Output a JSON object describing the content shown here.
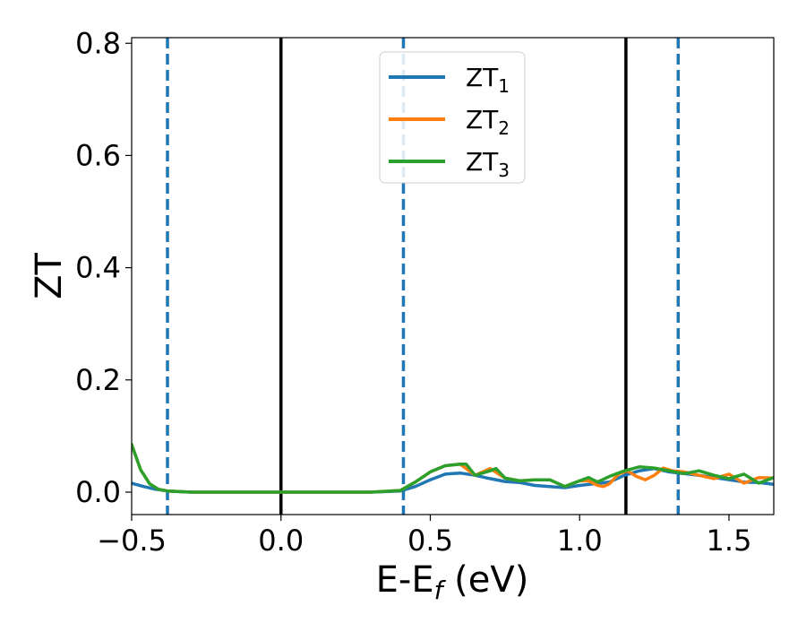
{
  "chart_data": {
    "type": "line",
    "xlabel": "E-E_f (eV)",
    "ylabel": "ZT",
    "xlim": [
      -0.5,
      1.65
    ],
    "ylim": [
      -0.04,
      0.81
    ],
    "x_ticks": [
      -0.5,
      0.0,
      0.5,
      1.0,
      1.5
    ],
    "x_tick_labels": [
      "−0.5",
      "0.0",
      "0.5",
      "1.0",
      "1.5"
    ],
    "y_ticks": [
      0.0,
      0.2,
      0.4,
      0.6,
      0.8
    ],
    "y_tick_labels": [
      "0.0",
      "0.2",
      "0.4",
      "0.6",
      "0.8"
    ],
    "grid": false,
    "legend_position": "top-center",
    "series": [
      {
        "name": "ZT_1",
        "label_main": "ZT",
        "label_sub": "1",
        "color": "#1f77b4",
        "x": [
          -0.5,
          -0.46,
          -0.42,
          -0.38,
          -0.3,
          0.0,
          0.3,
          0.4,
          0.45,
          0.5,
          0.55,
          0.6,
          0.65,
          0.7,
          0.75,
          0.8,
          0.85,
          0.9,
          0.95,
          1.0,
          1.05,
          1.1,
          1.15,
          1.2,
          1.25,
          1.3,
          1.35,
          1.4,
          1.45,
          1.5,
          1.55,
          1.6,
          1.65
        ],
        "y": [
          0.016,
          0.01,
          0.005,
          0.002,
          0.0,
          0.0,
          0.0,
          0.002,
          0.01,
          0.022,
          0.032,
          0.034,
          0.03,
          0.024,
          0.019,
          0.017,
          0.012,
          0.01,
          0.008,
          0.012,
          0.015,
          0.018,
          0.03,
          0.038,
          0.042,
          0.036,
          0.033,
          0.03,
          0.026,
          0.022,
          0.018,
          0.017,
          0.014
        ]
      },
      {
        "name": "ZT_2",
        "label_main": "ZT",
        "label_sub": "2",
        "color": "#ff7f0e",
        "x": [
          -0.5,
          -0.47,
          -0.44,
          -0.41,
          -0.38,
          -0.3,
          0.0,
          0.3,
          0.4,
          0.45,
          0.5,
          0.55,
          0.6,
          0.65,
          0.7,
          0.75,
          0.8,
          0.85,
          0.9,
          0.95,
          1.0,
          1.03,
          1.06,
          1.08,
          1.1,
          1.13,
          1.16,
          1.19,
          1.22,
          1.25,
          1.28,
          1.31,
          1.35,
          1.4,
          1.45,
          1.5,
          1.55,
          1.6,
          1.65
        ],
        "y": [
          0.085,
          0.04,
          0.015,
          0.005,
          0.002,
          0.0,
          0.0,
          0.0,
          0.003,
          0.018,
          0.036,
          0.047,
          0.05,
          0.03,
          0.042,
          0.025,
          0.02,
          0.022,
          0.022,
          0.01,
          0.02,
          0.02,
          0.012,
          0.01,
          0.015,
          0.032,
          0.038,
          0.028,
          0.022,
          0.03,
          0.043,
          0.038,
          0.036,
          0.03,
          0.024,
          0.032,
          0.016,
          0.026,
          0.025
        ]
      },
      {
        "name": "ZT_3",
        "label_main": "ZT",
        "label_sub": "3",
        "color": "#2ca02c",
        "x": [
          -0.5,
          -0.47,
          -0.44,
          -0.41,
          -0.38,
          -0.3,
          0.0,
          0.3,
          0.4,
          0.45,
          0.5,
          0.55,
          0.6,
          0.62,
          0.65,
          0.7,
          0.72,
          0.75,
          0.8,
          0.85,
          0.9,
          0.95,
          1.0,
          1.03,
          1.06,
          1.1,
          1.15,
          1.2,
          1.25,
          1.3,
          1.35,
          1.4,
          1.45,
          1.5,
          1.55,
          1.6,
          1.65
        ],
        "y": [
          0.085,
          0.04,
          0.015,
          0.005,
          0.002,
          0.0,
          0.0,
          0.0,
          0.003,
          0.018,
          0.036,
          0.047,
          0.05,
          0.05,
          0.03,
          0.038,
          0.042,
          0.025,
          0.02,
          0.022,
          0.022,
          0.01,
          0.02,
          0.026,
          0.018,
          0.028,
          0.038,
          0.045,
          0.043,
          0.038,
          0.033,
          0.038,
          0.03,
          0.024,
          0.032,
          0.016,
          0.026
        ]
      }
    ],
    "vertical_lines": [
      {
        "x": -0.38,
        "style": "dashed",
        "color": "#1f77b4"
      },
      {
        "x": 0.0,
        "style": "solid",
        "color": "#000000"
      },
      {
        "x": 0.41,
        "style": "dashed",
        "color": "#1f77b4"
      },
      {
        "x": 1.155,
        "style": "solid",
        "color": "#000000"
      },
      {
        "x": 1.33,
        "style": "dashed",
        "color": "#1f77b4"
      }
    ]
  }
}
